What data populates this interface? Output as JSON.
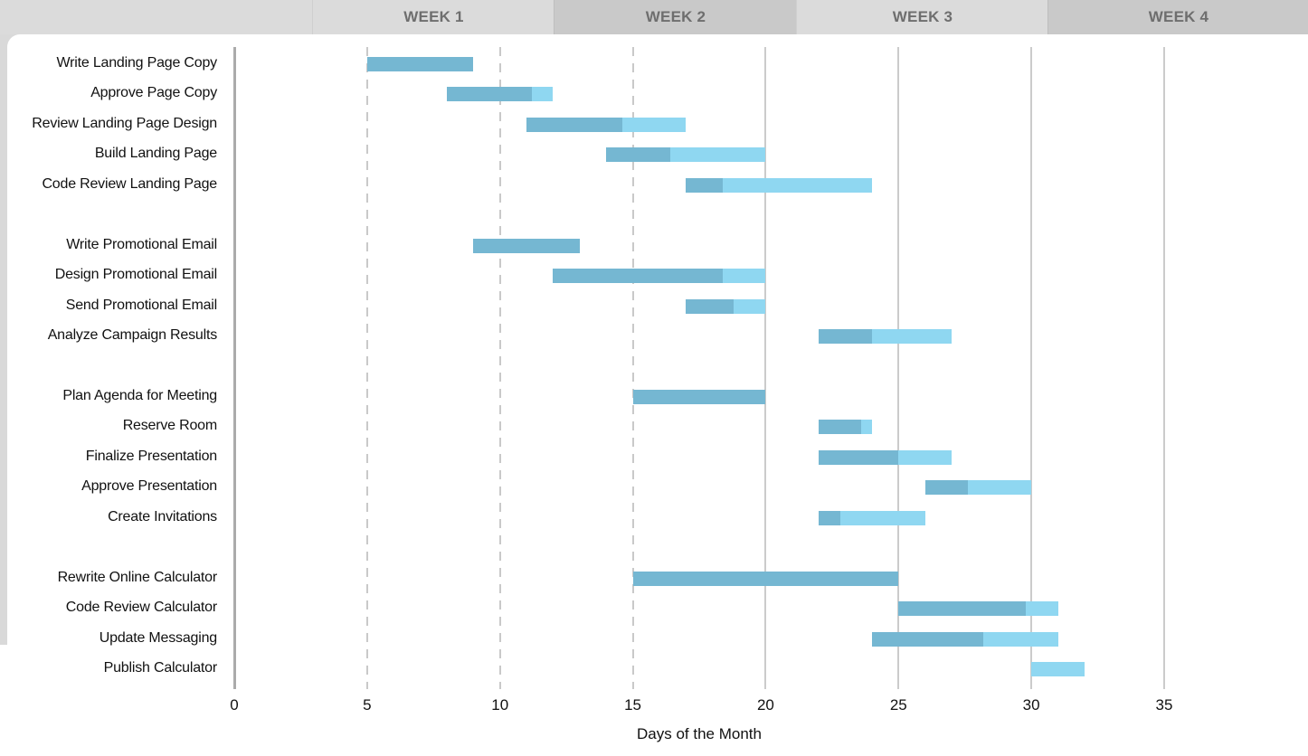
{
  "header": {
    "weeks": [
      {
        "label": "WEEK 1"
      },
      {
        "label": "WEEK 2"
      },
      {
        "label": "WEEK 3"
      },
      {
        "label": "WEEK 4"
      }
    ],
    "band_light_color": "#dbdbdb",
    "band_dark_color": "#c9c9c9",
    "label_color": "#6e6e6e"
  },
  "chart_data": {
    "type": "bar",
    "subtype": "gantt",
    "title": "",
    "xlabel": "Days of the Month",
    "ylabel": "",
    "x_ticks": [
      0,
      5,
      10,
      15,
      20,
      25,
      30,
      35
    ],
    "xlim": [
      0,
      40.4
    ],
    "grid": "vertical; dashed for days 5-15, solid for days 20-35",
    "legend": "none",
    "colors": {
      "bar_complete": "#75b7d2",
      "bar_remaining": "#8fd7f1",
      "gridline": "#cbcbcb",
      "axis_line": "#ababab",
      "text": "#111111"
    },
    "task_groups": [
      {
        "tasks": [
          {
            "label": "Write Landing Page Copy",
            "start": 5,
            "end": 9,
            "complete": 1.0
          },
          {
            "label": "Approve Page Copy",
            "start": 8,
            "end": 12,
            "complete": 0.8
          },
          {
            "label": "Review Landing Page Design",
            "start": 11,
            "end": 17,
            "complete": 0.6
          },
          {
            "label": "Build Landing Page",
            "start": 14,
            "end": 20,
            "complete": 0.4
          },
          {
            "label": "Code Review Landing Page",
            "start": 17,
            "end": 24,
            "complete": 0.2
          }
        ]
      },
      {
        "tasks": [
          {
            "label": "Write Promotional Email",
            "start": 9,
            "end": 13,
            "complete": 1.0
          },
          {
            "label": "Design Promotional Email",
            "start": 12,
            "end": 20,
            "complete": 0.8
          },
          {
            "label": "Send Promotional Email",
            "start": 17,
            "end": 20,
            "complete": 0.6
          },
          {
            "label": "Analyze Campaign Results",
            "start": 22,
            "end": 27,
            "complete": 0.4
          }
        ]
      },
      {
        "tasks": [
          {
            "label": "Plan Agenda for Meeting",
            "start": 15,
            "end": 20,
            "complete": 1.0
          },
          {
            "label": "Reserve Room",
            "start": 22,
            "end": 24,
            "complete": 0.8
          },
          {
            "label": "Finalize Presentation",
            "start": 22,
            "end": 27,
            "complete": 0.6
          },
          {
            "label": "Approve Presentation",
            "start": 26,
            "end": 30,
            "complete": 0.4
          },
          {
            "label": "Create Invitations",
            "start": 22,
            "end": 26,
            "complete": 0.2
          }
        ]
      },
      {
        "tasks": [
          {
            "label": "Rewrite Online Calculator",
            "start": 15,
            "end": 25,
            "complete": 1.0
          },
          {
            "label": "Code Review Calculator",
            "start": 25,
            "end": 31,
            "complete": 0.8
          },
          {
            "label": "Update Messaging",
            "start": 24,
            "end": 31,
            "complete": 0.6
          },
          {
            "label": "Publish Calculator",
            "start": 30,
            "end": 32,
            "complete": 0.0
          }
        ]
      }
    ]
  }
}
